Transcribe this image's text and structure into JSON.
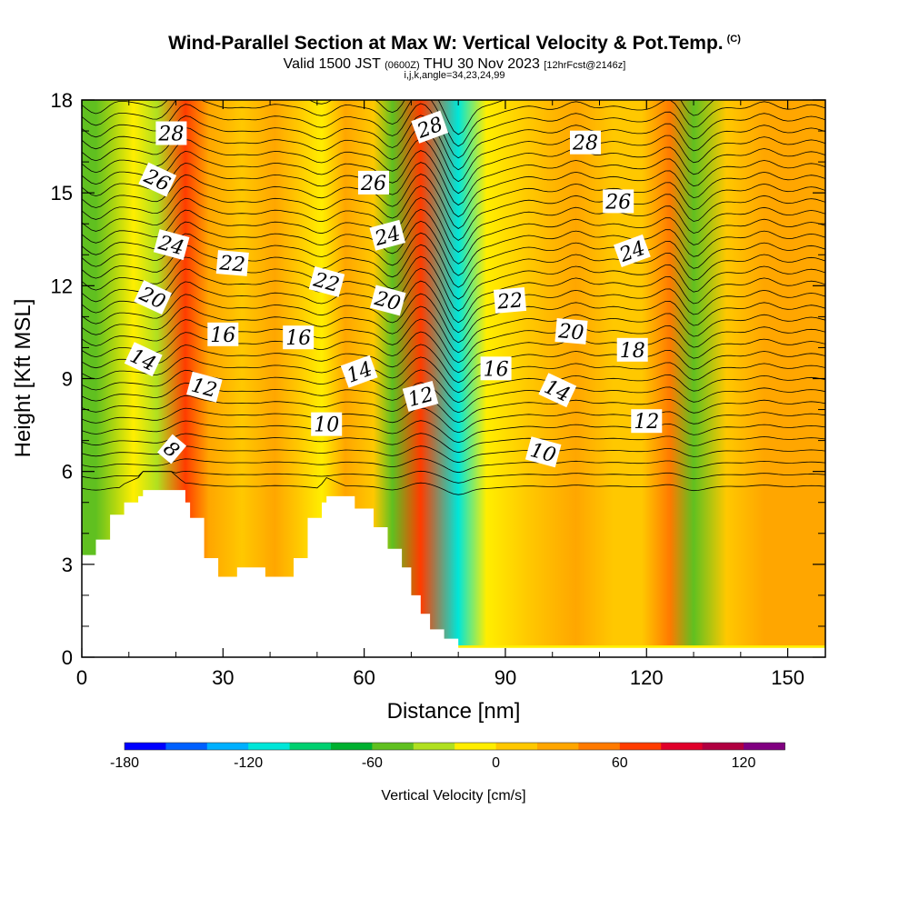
{
  "header": {
    "title": "Wind-Parallel Section at Max W: Vertical Velocity & Pot.Temp.",
    "copyright": "(C)",
    "valid_prefix": "Valid 1500 JST",
    "valid_utc": "(0600Z)",
    "valid_date": "THU 30 Nov 2023",
    "forecast": "[12hrFcst@2146z]",
    "indices": "i,j,k,angle=34,23,24,99"
  },
  "chart_data": {
    "type": "heatmap",
    "xlabel": "Distance [nm]",
    "ylabel": "Height [Kft MSL]",
    "xlim": [
      0,
      158
    ],
    "ylim": [
      0,
      18
    ],
    "x_ticks": [
      0,
      30,
      60,
      90,
      120,
      150
    ],
    "y_ticks": [
      0,
      3,
      6,
      9,
      12,
      15,
      18
    ],
    "colorbar": {
      "label": "Vertical Velocity [cm/s]",
      "ticks": [
        -180,
        -120,
        -60,
        0,
        60,
        120
      ],
      "colors": [
        "#0000ff",
        "#0060ff",
        "#00b0ff",
        "#00e6d8",
        "#00d070",
        "#00b030",
        "#60c020",
        "#b0e020",
        "#ffee00",
        "#ffc800",
        "#ffa600",
        "#ff7a00",
        "#ff3c00",
        "#e0002a",
        "#b00040",
        "#800080"
      ]
    },
    "w_columns": [
      {
        "x": 3,
        "w": -50
      },
      {
        "x": 11,
        "w": -10
      },
      {
        "x": 16,
        "w": -30
      },
      {
        "x": 22,
        "w": 60
      },
      {
        "x": 27,
        "w": 20
      },
      {
        "x": 34,
        "w": 10
      },
      {
        "x": 41,
        "w": 20
      },
      {
        "x": 46,
        "w": 10
      },
      {
        "x": 51,
        "w": -20
      },
      {
        "x": 56,
        "w": 20
      },
      {
        "x": 62,
        "w": 10
      },
      {
        "x": 66,
        "w": -50
      },
      {
        "x": 72,
        "w": 65
      },
      {
        "x": 80,
        "w": -120
      },
      {
        "x": 86,
        "w": -20
      },
      {
        "x": 95,
        "w": 15
      },
      {
        "x": 105,
        "w": 30
      },
      {
        "x": 113,
        "w": 15
      },
      {
        "x": 119,
        "w": 0
      },
      {
        "x": 125,
        "w": 40
      },
      {
        "x": 130,
        "w": -60
      },
      {
        "x": 137,
        "w": 10
      },
      {
        "x": 145,
        "w": 30
      },
      {
        "x": 155,
        "w": 20
      }
    ],
    "theta_labels": [
      {
        "text": "28",
        "x": 19,
        "y": 16.9,
        "rot": 0
      },
      {
        "text": "26",
        "x": 16,
        "y": 15.4,
        "rot": 25
      },
      {
        "text": "24",
        "x": 19,
        "y": 13.3,
        "rot": 15
      },
      {
        "text": "22",
        "x": 32,
        "y": 12.7,
        "rot": 5
      },
      {
        "text": "20",
        "x": 15,
        "y": 11.6,
        "rot": 25
      },
      {
        "text": "16",
        "x": 30,
        "y": 10.4,
        "rot": 0
      },
      {
        "text": "14",
        "x": 13,
        "y": 9.6,
        "rot": 25
      },
      {
        "text": "12",
        "x": 26,
        "y": 8.7,
        "rot": 15
      },
      {
        "text": "8",
        "x": 19,
        "y": 6.7,
        "rot": 40
      },
      {
        "text": "16",
        "x": 46,
        "y": 10.3,
        "rot": 0
      },
      {
        "text": "22",
        "x": 52,
        "y": 12.1,
        "rot": 15
      },
      {
        "text": "26",
        "x": 62,
        "y": 15.3,
        "rot": 0
      },
      {
        "text": "24",
        "x": 65,
        "y": 13.6,
        "rot": -15
      },
      {
        "text": "20",
        "x": 65,
        "y": 11.5,
        "rot": 15
      },
      {
        "text": "14",
        "x": 59,
        "y": 9.2,
        "rot": -20
      },
      {
        "text": "10",
        "x": 52,
        "y": 7.5,
        "rot": 0
      },
      {
        "text": "28",
        "x": 74,
        "y": 17.1,
        "rot": -20
      },
      {
        "text": "12",
        "x": 72,
        "y": 8.4,
        "rot": -15
      },
      {
        "text": "16",
        "x": 88,
        "y": 9.3,
        "rot": 0
      },
      {
        "text": "22",
        "x": 91,
        "y": 11.5,
        "rot": -5
      },
      {
        "text": "10",
        "x": 98,
        "y": 6.6,
        "rot": 15
      },
      {
        "text": "14",
        "x": 101,
        "y": 8.6,
        "rot": 25
      },
      {
        "text": "20",
        "x": 104,
        "y": 10.5,
        "rot": 5
      },
      {
        "text": "28",
        "x": 107,
        "y": 16.6,
        "rot": 0
      },
      {
        "text": "26",
        "x": 114,
        "y": 14.7,
        "rot": 0
      },
      {
        "text": "24",
        "x": 117,
        "y": 13.1,
        "rot": -20
      },
      {
        "text": "18",
        "x": 117,
        "y": 9.9,
        "rot": 0
      },
      {
        "text": "12",
        "x": 120,
        "y": 7.6,
        "rot": 0
      }
    ],
    "terrain_kft": [
      {
        "x": 0,
        "z": 3.3
      },
      {
        "x": 3,
        "z": 3.8
      },
      {
        "x": 6,
        "z": 4.6
      },
      {
        "x": 9,
        "z": 5.0
      },
      {
        "x": 12,
        "z": 5.2
      },
      {
        "x": 13,
        "z": 5.4
      },
      {
        "x": 19,
        "z": 5.4
      },
      {
        "x": 22,
        "z": 5.0
      },
      {
        "x": 23,
        "z": 4.5
      },
      {
        "x": 26,
        "z": 3.2
      },
      {
        "x": 29,
        "z": 2.6
      },
      {
        "x": 33,
        "z": 2.9
      },
      {
        "x": 39,
        "z": 2.6
      },
      {
        "x": 45,
        "z": 3.2
      },
      {
        "x": 48,
        "z": 4.5
      },
      {
        "x": 51,
        "z": 5.0
      },
      {
        "x": 52,
        "z": 5.2
      },
      {
        "x": 58,
        "z": 4.8
      },
      {
        "x": 62,
        "z": 4.2
      },
      {
        "x": 65,
        "z": 3.5
      },
      {
        "x": 68,
        "z": 2.9
      },
      {
        "x": 70,
        "z": 2.0
      },
      {
        "x": 72,
        "z": 1.4
      },
      {
        "x": 74,
        "z": 0.9
      },
      {
        "x": 77,
        "z": 0.6
      },
      {
        "x": 80,
        "z": 0.3
      },
      {
        "x": 158,
        "z": 0.3
      }
    ]
  }
}
